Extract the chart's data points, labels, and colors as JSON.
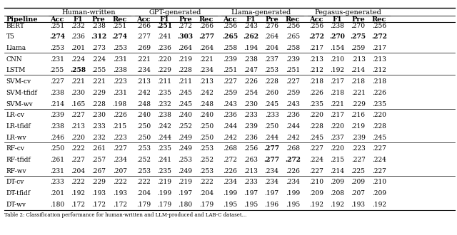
{
  "title": "",
  "caption": "Table 2: Classification performance for human-written and LLM-produced and LAB-C dataset...",
  "col_groups": [
    "Human-written",
    "GPT-generated",
    "Llama-generated",
    "Pegasus-generated"
  ],
  "sub_cols": [
    "Acc",
    "F1",
    "Pre",
    "Rec"
  ],
  "pipeline_col": "Pipeline",
  "pipelines": [
    "BERT",
    "T5",
    "Llama",
    "CNN",
    "LSTM",
    "SVM-cv",
    "SVM-tfidf",
    "SVM-wv",
    "LR-cv",
    "LR-tfidf",
    "LR-wv",
    "RF-cv",
    "RF-tfidf",
    "RF-wv",
    "DT-cv",
    "DT-tfidf",
    "DT-wv"
  ],
  "data": {
    "BERT": [
      [
        ".251",
        ".232",
        ".238",
        ".251"
      ],
      [
        ".266",
        ".251",
        ".272",
        ".266"
      ],
      [
        ".256",
        ".243",
        ".276",
        ".256"
      ],
      [
        ".256",
        ".238",
        ".270",
        ".256"
      ]
    ],
    "T5": [
      [
        ".274",
        ".236",
        ".312",
        ".274"
      ],
      [
        ".277",
        ".241",
        ".303",
        ".277"
      ],
      [
        ".265",
        ".262",
        ".264",
        ".265"
      ],
      [
        ".272",
        ".270",
        ".275",
        ".272"
      ]
    ],
    "Llama": [
      [
        ".253",
        ".201",
        ".273",
        ".253"
      ],
      [
        ".269",
        ".236",
        ".264",
        ".264"
      ],
      [
        ".258",
        ".194",
        ".204",
        ".258"
      ],
      [
        ".217",
        ".154",
        ".259",
        ".217"
      ]
    ],
    "CNN": [
      [
        ".231",
        ".224",
        ".224",
        ".231"
      ],
      [
        ".221",
        ".220",
        ".219",
        ".221"
      ],
      [
        ".239",
        ".238",
        ".237",
        ".239"
      ],
      [
        ".213",
        ".210",
        ".213",
        ".213"
      ]
    ],
    "LSTM": [
      [
        ".255",
        ".258",
        ".255",
        ".238"
      ],
      [
        ".234",
        ".229",
        ".228",
        ".234"
      ],
      [
        ".251",
        ".247",
        ".253",
        ".251"
      ],
      [
        ".212",
        ".192",
        ".214",
        ".212"
      ]
    ],
    "SVM-cv": [
      [
        ".227",
        ".221",
        ".221",
        ".223"
      ],
      [
        ".213",
        ".211",
        ".211",
        ".213"
      ],
      [
        ".227",
        ".226",
        ".228",
        ".227"
      ],
      [
        ".218",
        ".217",
        ".218",
        ".218"
      ]
    ],
    "SVM-tfidf": [
      [
        ".238",
        ".230",
        ".229",
        ".231"
      ],
      [
        ".242",
        ".235",
        ".245",
        ".242"
      ],
      [
        ".259",
        ".254",
        ".260",
        ".259"
      ],
      [
        ".226",
        ".218",
        ".221",
        ".226"
      ]
    ],
    "SVM-wv": [
      [
        ".214",
        ".165",
        ".228",
        ".198"
      ],
      [
        ".248",
        ".232",
        ".245",
        ".248"
      ],
      [
        ".243",
        ".230",
        ".245",
        ".243"
      ],
      [
        ".235",
        ".221",
        ".229",
        ".235"
      ]
    ],
    "LR-cv": [
      [
        ".239",
        ".227",
        ".230",
        ".226"
      ],
      [
        ".240",
        ".238",
        ".240",
        ".240"
      ],
      [
        ".236",
        ".233",
        ".233",
        ".236"
      ],
      [
        ".220",
        ".217",
        ".216",
        ".220"
      ]
    ],
    "LR-tfidf": [
      [
        ".238",
        ".213",
        ".233",
        ".215"
      ],
      [
        ".250",
        ".242",
        ".252",
        ".250"
      ],
      [
        ".244",
        ".239",
        ".250",
        ".244"
      ],
      [
        ".228",
        ".220",
        ".219",
        ".228"
      ]
    ],
    "LR-wv": [
      [
        ".246",
        ".220",
        ".232",
        ".223"
      ],
      [
        ".250",
        ".244",
        ".249",
        ".250"
      ],
      [
        ".242",
        ".236",
        ".244",
        ".242"
      ],
      [
        ".245",
        ".237",
        ".239",
        ".245"
      ]
    ],
    "RF-cv": [
      [
        ".250",
        ".222",
        ".261",
        ".227"
      ],
      [
        ".253",
        ".235",
        ".249",
        ".253"
      ],
      [
        ".268",
        ".256",
        ".277",
        ".268"
      ],
      [
        ".227",
        ".220",
        ".223",
        ".227"
      ]
    ],
    "RF-tfidf": [
      [
        ".261",
        ".227",
        ".257",
        ".234"
      ],
      [
        ".252",
        ".241",
        ".253",
        ".252"
      ],
      [
        ".272",
        ".263",
        ".277",
        ".272"
      ],
      [
        ".224",
        ".215",
        ".227",
        ".224"
      ]
    ],
    "RF-wv": [
      [
        ".231",
        ".204",
        ".267",
        ".207"
      ],
      [
        ".253",
        ".235",
        ".249",
        ".253"
      ],
      [
        ".226",
        ".213",
        ".234",
        ".226"
      ],
      [
        ".227",
        ".214",
        ".225",
        ".227"
      ]
    ],
    "DT-cv": [
      [
        ".233",
        ".222",
        ".229",
        ".222"
      ],
      [
        ".222",
        ".219",
        ".219",
        ".222"
      ],
      [
        ".234",
        ".233",
        ".234",
        ".234"
      ],
      [
        ".210",
        ".209",
        ".209",
        ".210"
      ]
    ],
    "DT-tfidf": [
      [
        ".201",
        ".192",
        ".193",
        ".193"
      ],
      [
        ".204",
        ".199",
        ".197",
        ".204"
      ],
      [
        ".199",
        ".197",
        ".197",
        ".199"
      ],
      [
        ".209",
        ".208",
        ".207",
        ".209"
      ]
    ],
    "DT-wv": [
      [
        ".180",
        ".172",
        ".172",
        ".172"
      ],
      [
        ".179",
        ".179",
        ".180",
        ".179"
      ],
      [
        ".195",
        ".195",
        ".196",
        ".195"
      ],
      [
        ".192",
        ".192",
        ".193",
        ".192"
      ]
    ]
  },
  "bold": {
    "BERT": [
      [
        false,
        false,
        false,
        false
      ],
      [
        false,
        true,
        false,
        false
      ],
      [
        false,
        false,
        false,
        false
      ],
      [
        false,
        false,
        false,
        false
      ]
    ],
    "T5": [
      [
        true,
        false,
        true,
        true
      ],
      [
        false,
        false,
        true,
        true
      ],
      [
        true,
        true,
        false,
        false
      ],
      [
        true,
        true,
        true,
        true
      ]
    ],
    "Llama": [
      [
        false,
        false,
        false,
        false
      ],
      [
        false,
        false,
        false,
        false
      ],
      [
        false,
        false,
        false,
        false
      ],
      [
        false,
        false,
        false,
        false
      ]
    ],
    "CNN": [
      [
        false,
        false,
        false,
        false
      ],
      [
        false,
        false,
        false,
        false
      ],
      [
        false,
        false,
        false,
        false
      ],
      [
        false,
        false,
        false,
        false
      ]
    ],
    "LSTM": [
      [
        false,
        true,
        false,
        false
      ],
      [
        false,
        false,
        false,
        false
      ],
      [
        false,
        false,
        false,
        false
      ],
      [
        false,
        false,
        false,
        false
      ]
    ],
    "SVM-cv": [
      [
        false,
        false,
        false,
        false
      ],
      [
        false,
        false,
        false,
        false
      ],
      [
        false,
        false,
        false,
        false
      ],
      [
        false,
        false,
        false,
        false
      ]
    ],
    "SVM-tfidf": [
      [
        false,
        false,
        false,
        false
      ],
      [
        false,
        false,
        false,
        false
      ],
      [
        false,
        false,
        false,
        false
      ],
      [
        false,
        false,
        false,
        false
      ]
    ],
    "SVM-wv": [
      [
        false,
        false,
        false,
        false
      ],
      [
        false,
        false,
        false,
        false
      ],
      [
        false,
        false,
        false,
        false
      ],
      [
        false,
        false,
        false,
        false
      ]
    ],
    "LR-cv": [
      [
        false,
        false,
        false,
        false
      ],
      [
        false,
        false,
        false,
        false
      ],
      [
        false,
        false,
        false,
        false
      ],
      [
        false,
        false,
        false,
        false
      ]
    ],
    "LR-tfidf": [
      [
        false,
        false,
        false,
        false
      ],
      [
        false,
        false,
        false,
        false
      ],
      [
        false,
        false,
        false,
        false
      ],
      [
        false,
        false,
        false,
        false
      ]
    ],
    "LR-wv": [
      [
        false,
        false,
        false,
        false
      ],
      [
        false,
        false,
        false,
        false
      ],
      [
        false,
        false,
        false,
        false
      ],
      [
        false,
        false,
        false,
        false
      ]
    ],
    "RF-cv": [
      [
        false,
        false,
        false,
        false
      ],
      [
        false,
        false,
        false,
        false
      ],
      [
        false,
        false,
        true,
        false
      ],
      [
        false,
        false,
        false,
        false
      ]
    ],
    "RF-tfidf": [
      [
        false,
        false,
        false,
        false
      ],
      [
        false,
        false,
        false,
        false
      ],
      [
        false,
        false,
        true,
        true
      ],
      [
        false,
        false,
        false,
        false
      ]
    ],
    "RF-wv": [
      [
        false,
        false,
        false,
        false
      ],
      [
        false,
        false,
        false,
        false
      ],
      [
        false,
        false,
        false,
        false
      ],
      [
        false,
        false,
        false,
        false
      ]
    ],
    "DT-cv": [
      [
        false,
        false,
        false,
        false
      ],
      [
        false,
        false,
        false,
        false
      ],
      [
        false,
        false,
        false,
        false
      ],
      [
        false,
        false,
        false,
        false
      ]
    ],
    "DT-tfidf": [
      [
        false,
        false,
        false,
        false
      ],
      [
        false,
        false,
        false,
        false
      ],
      [
        false,
        false,
        false,
        false
      ],
      [
        false,
        false,
        false,
        false
      ]
    ],
    "DT-wv": [
      [
        false,
        false,
        false,
        false
      ],
      [
        false,
        false,
        false,
        false
      ],
      [
        false,
        false,
        false,
        false
      ],
      [
        false,
        false,
        false,
        false
      ]
    ]
  },
  "group_separators": [
    3,
    5,
    8,
    11,
    14
  ],
  "background_color": "#ffffff",
  "font_size": 6.5,
  "header_font_size": 7.0
}
